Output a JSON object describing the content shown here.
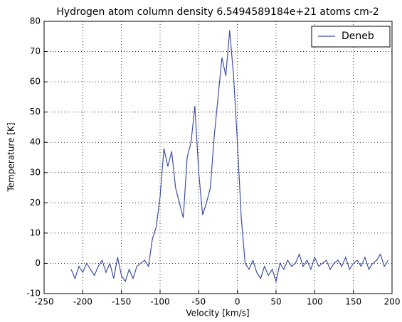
{
  "chart_data": {
    "type": "line",
    "title": "Hydrogen atom column density 6.5494589184e+21 atoms  cm-2",
    "xlabel": "Velocity [km/s]",
    "ylabel": "Temperature [K]",
    "x": [
      -215,
      -210,
      -205,
      -200,
      -195,
      -190,
      -185,
      -180,
      -175,
      -170,
      -165,
      -160,
      -155,
      -150,
      -145,
      -140,
      -135,
      -130,
      -125,
      -120,
      -115,
      -110,
      -105,
      -100,
      -95,
      -90,
      -85,
      -80,
      -75,
      -70,
      -65,
      -60,
      -55,
      -50,
      -45,
      -40,
      -35,
      -30,
      -25,
      -20,
      -15,
      -10,
      -5,
      0,
      5,
      10,
      15,
      20,
      25,
      30,
      35,
      40,
      45,
      50,
      55,
      60,
      65,
      70,
      75,
      80,
      85,
      90,
      95,
      100,
      105,
      110,
      115,
      120,
      125,
      130,
      135,
      140,
      145,
      150,
      155,
      160,
      165,
      170,
      175,
      180,
      185,
      190,
      195
    ],
    "series": [
      {
        "name": "Deneb",
        "color": "#3f4fa3",
        "values": [
          -2,
          -5,
          -1,
          -3,
          0,
          -2,
          -4,
          -1,
          1,
          -3,
          0,
          -5,
          2,
          -4,
          -6,
          -2,
          -5,
          -1,
          0,
          1,
          -1,
          8,
          12,
          22,
          38,
          32,
          37,
          25,
          20,
          15,
          35,
          40,
          52,
          30,
          16,
          20,
          25,
          42,
          55,
          68,
          62,
          77,
          62,
          40,
          15,
          0,
          -2,
          1,
          -3,
          -5,
          -1,
          -4,
          -2,
          -6,
          0,
          -2,
          1,
          -1,
          0,
          3,
          -1,
          1,
          -2,
          2,
          -1,
          0,
          1,
          -2,
          0,
          1,
          -1,
          2,
          -2,
          0,
          1,
          -1,
          2,
          -2,
          0,
          1,
          3,
          -1,
          1
        ]
      }
    ],
    "xlim": [
      -250,
      200
    ],
    "ylim": [
      -10,
      80
    ],
    "xticks": [
      -250,
      -200,
      -150,
      -100,
      -50,
      0,
      50,
      100,
      150,
      200
    ],
    "yticks": [
      -10,
      0,
      10,
      20,
      30,
      40,
      50,
      60,
      70,
      80
    ],
    "grid": true,
    "legend": "upper right"
  }
}
